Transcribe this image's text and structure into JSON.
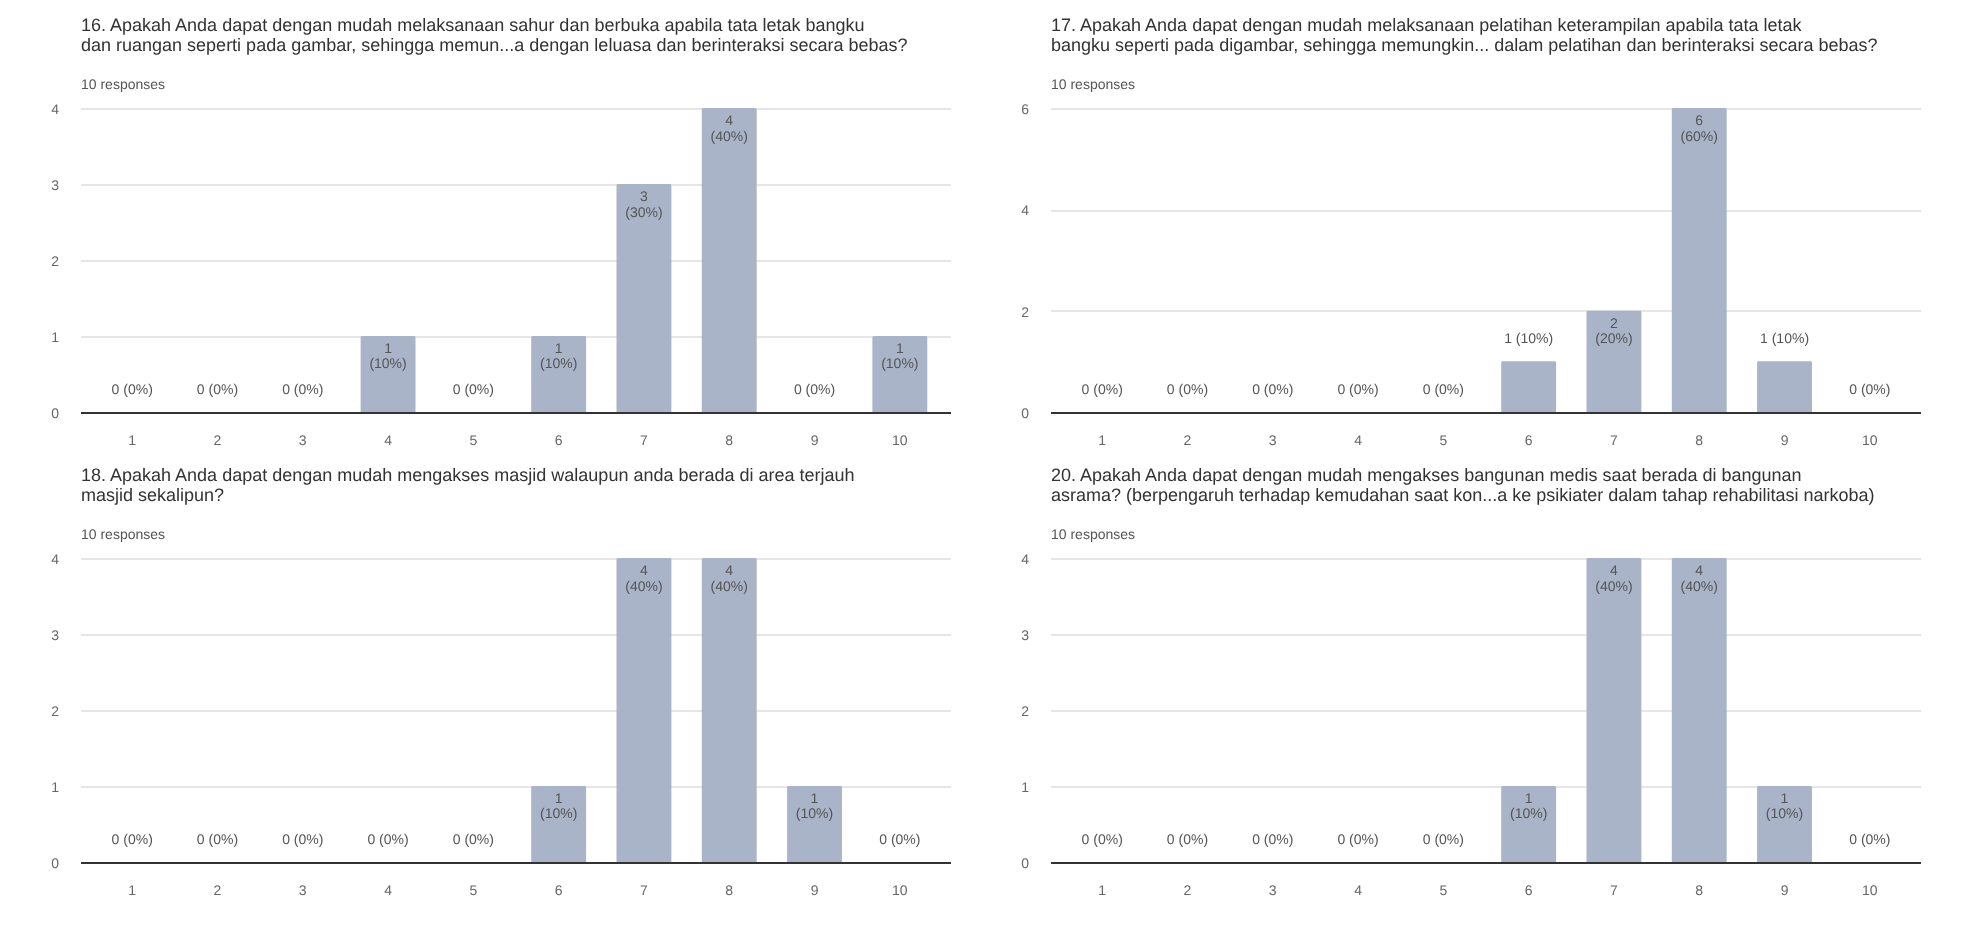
{
  "chart_data": [
    {
      "type": "bar",
      "title": "16. Apakah Anda dapat dengan mudah melaksanaan sahur dan berbuka apabila tata letak bangku\ndan ruangan seperti pada gambar, sehingga memun...a dengan leluasa dan berinteraksi secara bebas?",
      "subtitle": "10 responses",
      "categories": [
        "1",
        "2",
        "3",
        "4",
        "5",
        "6",
        "7",
        "8",
        "9",
        "10"
      ],
      "values": [
        0,
        0,
        0,
        1,
        0,
        1,
        3,
        4,
        0,
        1
      ],
      "color": "#a9b4c9",
      "ylim": [
        0,
        4
      ],
      "yticks": [
        0,
        1,
        2,
        3,
        4
      ],
      "grid": "y",
      "value_labels": [
        "0 (0%)",
        "0 (0%)",
        "0 (0%)",
        "1\n(10%)",
        "0 (0%)",
        "1\n(10%)",
        "3\n(30%)",
        "4\n(40%)",
        "0 (0%)",
        "1\n(10%)"
      ]
    },
    {
      "type": "bar",
      "title": "17. Apakah Anda dapat dengan mudah melaksanaan pelatihan keterampilan apabila tata letak\nbangku seperti pada digambar, sehingga memungkin... dalam pelatihan dan berinteraksi secara bebas?",
      "subtitle": "10 responses",
      "categories": [
        "1",
        "2",
        "3",
        "4",
        "5",
        "6",
        "7",
        "8",
        "9",
        "10"
      ],
      "values": [
        0,
        0,
        0,
        0,
        0,
        1,
        2,
        6,
        1,
        0
      ],
      "color": "#a9b4c9",
      "ylim": [
        0,
        6
      ],
      "yticks": [
        0,
        2,
        4,
        6
      ],
      "grid": "y",
      "value_labels": [
        "0 (0%)",
        "0 (0%)",
        "0 (0%)",
        "0 (0%)",
        "0 (0%)",
        "1 (10%)",
        "2\n(20%)",
        "6\n(60%)",
        "1 (10%)",
        "0 (0%)"
      ]
    },
    {
      "type": "bar",
      "title": "18. Apakah Anda dapat dengan mudah mengakses masjid walaupun anda berada di area terjauh\nmasjid sekalipun?",
      "subtitle": "10 responses",
      "categories": [
        "1",
        "2",
        "3",
        "4",
        "5",
        "6",
        "7",
        "8",
        "9",
        "10"
      ],
      "values": [
        0,
        0,
        0,
        0,
        0,
        1,
        4,
        4,
        1,
        0
      ],
      "color": "#a9b4c9",
      "ylim": [
        0,
        4
      ],
      "yticks": [
        0,
        1,
        2,
        3,
        4
      ],
      "grid": "y",
      "value_labels": [
        "0 (0%)",
        "0 (0%)",
        "0 (0%)",
        "0 (0%)",
        "0 (0%)",
        "1\n(10%)",
        "4\n(40%)",
        "4\n(40%)",
        "1\n(10%)",
        "0 (0%)"
      ]
    },
    {
      "type": "bar",
      "title": "20. Apakah Anda dapat dengan mudah mengakses bangunan medis saat berada di bangunan\nasrama? (berpengaruh terhadap kemudahan saat kon...a ke psikiater dalam tahap rehabilitasi narkoba)",
      "subtitle": "10 responses",
      "categories": [
        "1",
        "2",
        "3",
        "4",
        "5",
        "6",
        "7",
        "8",
        "9",
        "10"
      ],
      "values": [
        0,
        0,
        0,
        0,
        0,
        1,
        4,
        4,
        1,
        0
      ],
      "color": "#a9b4c9",
      "ylim": [
        0,
        4
      ],
      "yticks": [
        0,
        1,
        2,
        3,
        4
      ],
      "grid": "y",
      "value_labels": [
        "0 (0%)",
        "0 (0%)",
        "0 (0%)",
        "0 (0%)",
        "0 (0%)",
        "1\n(10%)",
        "4\n(40%)",
        "4\n(40%)",
        "1\n(10%)",
        "0 (0%)"
      ]
    }
  ]
}
